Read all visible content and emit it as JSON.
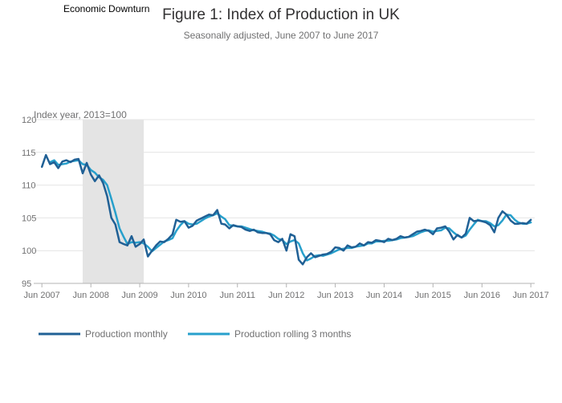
{
  "chart_data": {
    "type": "line",
    "title": "Figure 1: Index of Production in UK",
    "subtitle": "Seasonally adjusted, June 2007 to June 2017",
    "ylabel": "Index year, 2013=100",
    "xlabel": "",
    "ylim": [
      95,
      120
    ],
    "xlim": [
      "2007-04-01",
      "2017-06-30"
    ],
    "y_ticks": [
      95,
      100,
      105,
      110,
      115,
      120
    ],
    "x_ticks": [
      {
        "date": "2007-06-01",
        "label": "Jun 2007"
      },
      {
        "date": "2008-06-01",
        "label": "Jun 2008"
      },
      {
        "date": "2009-06-01",
        "label": "Jun 2009"
      },
      {
        "date": "2010-06-01",
        "label": "Jun 2010"
      },
      {
        "date": "2011-06-01",
        "label": "Jun 2011"
      },
      {
        "date": "2012-06-01",
        "label": "Jun 2012"
      },
      {
        "date": "2013-06-01",
        "label": "Jun 2013"
      },
      {
        "date": "2014-06-01",
        "label": "Jun 2014"
      },
      {
        "date": "2015-06-01",
        "label": "Jun 2015"
      },
      {
        "date": "2016-06-01",
        "label": "Jun 2016"
      },
      {
        "date": "2017-06-01",
        "label": "Jun 2017"
      }
    ],
    "grid": true,
    "legend_position": "bottom-left",
    "shaded_region": {
      "label": "Economic Downturn",
      "start": "2008-04-01",
      "end": "2009-07-01",
      "color": "#e4e4e4"
    },
    "series": [
      {
        "name": "Production monthly",
        "color": "#206095",
        "points": [
          [
            "2007-06-01",
            112.8
          ],
          [
            "2007-07-01",
            114.6
          ],
          [
            "2007-08-01",
            113.2
          ],
          [
            "2007-09-01",
            113.5
          ],
          [
            "2007-10-01",
            112.6
          ],
          [
            "2007-11-01",
            113.6
          ],
          [
            "2007-12-01",
            113.8
          ],
          [
            "2008-01-01",
            113.5
          ],
          [
            "2008-02-01",
            113.9
          ],
          [
            "2008-03-01",
            114.0
          ],
          [
            "2008-04-01",
            111.8
          ],
          [
            "2008-05-01",
            113.4
          ],
          [
            "2008-06-01",
            111.6
          ],
          [
            "2008-07-01",
            110.6
          ],
          [
            "2008-08-01",
            111.5
          ],
          [
            "2008-09-01",
            110.3
          ],
          [
            "2008-10-01",
            108.3
          ],
          [
            "2008-11-01",
            105.0
          ],
          [
            "2008-12-01",
            104.0
          ],
          [
            "2009-01-01",
            101.3
          ],
          [
            "2009-02-01",
            101.0
          ],
          [
            "2009-03-01",
            100.8
          ],
          [
            "2009-04-01",
            102.2
          ],
          [
            "2009-05-01",
            100.6
          ],
          [
            "2009-06-01",
            101.0
          ],
          [
            "2009-07-01",
            101.7
          ],
          [
            "2009-08-01",
            99.1
          ],
          [
            "2009-09-01",
            100.0
          ],
          [
            "2009-10-01",
            100.8
          ],
          [
            "2009-11-01",
            101.4
          ],
          [
            "2009-12-01",
            101.3
          ],
          [
            "2010-01-01",
            101.8
          ],
          [
            "2010-02-01",
            102.5
          ],
          [
            "2010-03-01",
            104.7
          ],
          [
            "2010-04-01",
            104.4
          ],
          [
            "2010-05-01",
            104.5
          ],
          [
            "2010-06-01",
            103.5
          ],
          [
            "2010-07-01",
            103.8
          ],
          [
            "2010-08-01",
            104.6
          ],
          [
            "2010-09-01",
            104.9
          ],
          [
            "2010-10-01",
            105.2
          ],
          [
            "2010-11-01",
            105.5
          ],
          [
            "2010-12-01",
            105.4
          ],
          [
            "2011-01-01",
            106.2
          ],
          [
            "2011-02-01",
            104.1
          ],
          [
            "2011-03-01",
            104.0
          ],
          [
            "2011-04-01",
            103.4
          ],
          [
            "2011-05-01",
            103.9
          ],
          [
            "2011-06-01",
            103.7
          ],
          [
            "2011-07-01",
            103.6
          ],
          [
            "2011-08-01",
            103.2
          ],
          [
            "2011-09-01",
            103.0
          ],
          [
            "2011-10-01",
            103.2
          ],
          [
            "2011-11-01",
            102.8
          ],
          [
            "2011-12-01",
            102.7
          ],
          [
            "2012-01-01",
            102.7
          ],
          [
            "2012-02-01",
            102.5
          ],
          [
            "2012-03-01",
            101.6
          ],
          [
            "2012-04-01",
            101.3
          ],
          [
            "2012-05-01",
            101.8
          ],
          [
            "2012-06-01",
            100.0
          ],
          [
            "2012-07-01",
            102.5
          ],
          [
            "2012-08-01",
            102.2
          ],
          [
            "2012-09-01",
            98.6
          ],
          [
            "2012-10-01",
            97.9
          ],
          [
            "2012-11-01",
            99.0
          ],
          [
            "2012-12-01",
            99.6
          ],
          [
            "2013-01-01",
            99.0
          ],
          [
            "2013-02-01",
            99.2
          ],
          [
            "2013-03-01",
            99.4
          ],
          [
            "2013-04-01",
            99.5
          ],
          [
            "2013-05-01",
            99.8
          ],
          [
            "2013-06-01",
            100.5
          ],
          [
            "2013-07-01",
            100.4
          ],
          [
            "2013-08-01",
            100.0
          ],
          [
            "2013-09-01",
            100.8
          ],
          [
            "2013-10-01",
            100.5
          ],
          [
            "2013-11-01",
            100.6
          ],
          [
            "2013-12-01",
            101.1
          ],
          [
            "2014-01-01",
            100.8
          ],
          [
            "2014-02-01",
            101.3
          ],
          [
            "2014-03-01",
            101.2
          ],
          [
            "2014-04-01",
            101.6
          ],
          [
            "2014-05-01",
            101.5
          ],
          [
            "2014-06-01",
            101.3
          ],
          [
            "2014-07-01",
            101.8
          ],
          [
            "2014-08-01",
            101.6
          ],
          [
            "2014-09-01",
            101.8
          ],
          [
            "2014-10-01",
            102.2
          ],
          [
            "2014-11-01",
            102.0
          ],
          [
            "2014-12-01",
            102.1
          ],
          [
            "2015-01-01",
            102.5
          ],
          [
            "2015-02-01",
            102.9
          ],
          [
            "2015-03-01",
            103.0
          ],
          [
            "2015-04-01",
            103.2
          ],
          [
            "2015-05-01",
            103.0
          ],
          [
            "2015-06-01",
            102.5
          ],
          [
            "2015-07-01",
            103.4
          ],
          [
            "2015-08-01",
            103.5
          ],
          [
            "2015-09-01",
            103.7
          ],
          [
            "2015-10-01",
            102.9
          ],
          [
            "2015-11-01",
            101.7
          ],
          [
            "2015-12-01",
            102.4
          ],
          [
            "2016-01-01",
            102.0
          ],
          [
            "2016-02-01",
            102.6
          ],
          [
            "2016-03-01",
            105.0
          ],
          [
            "2016-04-01",
            104.5
          ],
          [
            "2016-05-01",
            104.6
          ],
          [
            "2016-06-01",
            104.5
          ],
          [
            "2016-07-01",
            104.3
          ],
          [
            "2016-08-01",
            103.9
          ],
          [
            "2016-09-01",
            102.8
          ],
          [
            "2016-10-01",
            105.0
          ],
          [
            "2016-11-01",
            106.0
          ],
          [
            "2016-12-01",
            105.5
          ],
          [
            "2017-01-01",
            104.6
          ],
          [
            "2017-02-01",
            104.1
          ],
          [
            "2017-03-01",
            104.1
          ],
          [
            "2017-04-01",
            104.2
          ],
          [
            "2017-05-01",
            104.1
          ],
          [
            "2017-06-01",
            104.7
          ]
        ]
      },
      {
        "name": "Production rolling 3 months",
        "color": "#27a0cc",
        "points": [
          [
            "2007-08-01",
            113.5
          ],
          [
            "2007-09-01",
            113.8
          ],
          [
            "2007-10-01",
            113.1
          ],
          [
            "2007-11-01",
            113.2
          ],
          [
            "2007-12-01",
            113.3
          ],
          [
            "2008-01-01",
            113.6
          ],
          [
            "2008-02-01",
            113.7
          ],
          [
            "2008-03-01",
            113.8
          ],
          [
            "2008-04-01",
            113.2
          ],
          [
            "2008-05-01",
            113.1
          ],
          [
            "2008-06-01",
            112.3
          ],
          [
            "2008-07-01",
            111.9
          ],
          [
            "2008-08-01",
            111.2
          ],
          [
            "2008-09-01",
            110.8
          ],
          [
            "2008-10-01",
            110.0
          ],
          [
            "2008-11-01",
            107.9
          ],
          [
            "2008-12-01",
            105.8
          ],
          [
            "2009-01-01",
            103.4
          ],
          [
            "2009-02-01",
            102.1
          ],
          [
            "2009-03-01",
            101.0
          ],
          [
            "2009-04-01",
            101.3
          ],
          [
            "2009-05-01",
            101.2
          ],
          [
            "2009-06-01",
            101.3
          ],
          [
            "2009-07-01",
            101.1
          ],
          [
            "2009-08-01",
            100.6
          ],
          [
            "2009-09-01",
            99.9
          ],
          [
            "2009-10-01",
            100.4
          ],
          [
            "2009-11-01",
            100.9
          ],
          [
            "2009-12-01",
            101.4
          ],
          [
            "2010-01-01",
            101.6
          ],
          [
            "2010-02-01",
            101.9
          ],
          [
            "2010-03-01",
            103.0
          ],
          [
            "2010-04-01",
            103.9
          ],
          [
            "2010-05-01",
            104.5
          ],
          [
            "2010-06-01",
            104.1
          ],
          [
            "2010-07-01",
            104.0
          ],
          [
            "2010-08-01",
            104.1
          ],
          [
            "2010-09-01",
            104.5
          ],
          [
            "2010-10-01",
            104.9
          ],
          [
            "2010-11-01",
            105.2
          ],
          [
            "2010-12-01",
            105.4
          ],
          [
            "2011-01-01",
            105.7
          ],
          [
            "2011-02-01",
            105.2
          ],
          [
            "2011-03-01",
            104.8
          ],
          [
            "2011-04-01",
            103.9
          ],
          [
            "2011-05-01",
            103.8
          ],
          [
            "2011-06-01",
            103.7
          ],
          [
            "2011-07-01",
            103.7
          ],
          [
            "2011-08-01",
            103.5
          ],
          [
            "2011-09-01",
            103.3
          ],
          [
            "2011-10-01",
            103.1
          ],
          [
            "2011-11-01",
            103.0
          ],
          [
            "2011-12-01",
            102.9
          ],
          [
            "2012-01-01",
            102.7
          ],
          [
            "2012-02-01",
            102.6
          ],
          [
            "2012-03-01",
            102.3
          ],
          [
            "2012-04-01",
            101.8
          ],
          [
            "2012-05-01",
            101.6
          ],
          [
            "2012-06-01",
            101.0
          ],
          [
            "2012-07-01",
            101.4
          ],
          [
            "2012-08-01",
            101.6
          ],
          [
            "2012-09-01",
            101.1
          ],
          [
            "2012-10-01",
            99.6
          ],
          [
            "2012-11-01",
            98.5
          ],
          [
            "2012-12-01",
            98.8
          ],
          [
            "2013-01-01",
            99.2
          ],
          [
            "2013-02-01",
            99.3
          ],
          [
            "2013-03-01",
            99.2
          ],
          [
            "2013-04-01",
            99.4
          ],
          [
            "2013-05-01",
            99.6
          ],
          [
            "2013-06-01",
            99.9
          ],
          [
            "2013-07-01",
            100.2
          ],
          [
            "2013-08-01",
            100.3
          ],
          [
            "2013-09-01",
            100.4
          ],
          [
            "2013-10-01",
            100.4
          ],
          [
            "2013-11-01",
            100.6
          ],
          [
            "2013-12-01",
            100.7
          ],
          [
            "2014-01-01",
            100.8
          ],
          [
            "2014-02-01",
            101.1
          ],
          [
            "2014-03-01",
            101.1
          ],
          [
            "2014-04-01",
            101.4
          ],
          [
            "2014-05-01",
            101.4
          ],
          [
            "2014-06-01",
            101.5
          ],
          [
            "2014-07-01",
            101.5
          ],
          [
            "2014-08-01",
            101.6
          ],
          [
            "2014-09-01",
            101.7
          ],
          [
            "2014-10-01",
            101.9
          ],
          [
            "2014-11-01",
            102.0
          ],
          [
            "2014-12-01",
            102.1
          ],
          [
            "2015-01-01",
            102.2
          ],
          [
            "2015-02-01",
            102.5
          ],
          [
            "2015-03-01",
            102.8
          ],
          [
            "2015-04-01",
            103.0
          ],
          [
            "2015-05-01",
            103.1
          ],
          [
            "2015-06-01",
            102.9
          ],
          [
            "2015-07-01",
            103.0
          ],
          [
            "2015-08-01",
            103.1
          ],
          [
            "2015-09-01",
            103.5
          ],
          [
            "2015-10-01",
            103.4
          ],
          [
            "2015-11-01",
            102.8
          ],
          [
            "2015-12-01",
            102.3
          ],
          [
            "2016-01-01",
            102.0
          ],
          [
            "2016-02-01",
            102.3
          ],
          [
            "2016-03-01",
            103.2
          ],
          [
            "2016-04-01",
            104.0
          ],
          [
            "2016-05-01",
            104.7
          ],
          [
            "2016-06-01",
            104.5
          ],
          [
            "2016-07-01",
            104.5
          ],
          [
            "2016-08-01",
            104.2
          ],
          [
            "2016-09-01",
            103.7
          ],
          [
            "2016-10-01",
            103.9
          ],
          [
            "2016-11-01",
            104.6
          ],
          [
            "2016-12-01",
            105.5
          ],
          [
            "2017-01-01",
            105.4
          ],
          [
            "2017-02-01",
            104.7
          ],
          [
            "2017-03-01",
            104.3
          ],
          [
            "2017-04-01",
            104.1
          ],
          [
            "2017-05-01",
            104.1
          ],
          [
            "2017-06-01",
            104.3
          ]
        ]
      }
    ]
  }
}
